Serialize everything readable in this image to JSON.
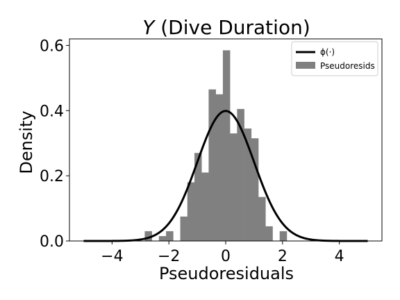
{
  "chart_data": {
    "type": "bar",
    "title_var": "Y",
    "title_rest": " (Dive Duration)",
    "xlabel": "Pseudoresiduals",
    "ylabel": "Density",
    "xlim": [
      -5.5,
      5.5
    ],
    "ylim": [
      0,
      0.62
    ],
    "xticks": [
      -4,
      -2,
      0,
      2,
      4
    ],
    "xtick_labels": [
      "−4",
      "−2",
      "0",
      "2",
      "4"
    ],
    "yticks": [
      0.0,
      0.2,
      0.4,
      0.6
    ],
    "ytick_labels": [
      "0.0",
      "0.2",
      "0.4",
      "0.6"
    ],
    "grid": false,
    "legend_position": "upper right",
    "legend": [
      {
        "label": "ϕ(·)",
        "kind": "line"
      },
      {
        "label": "Pseudoresids",
        "kind": "patch"
      }
    ],
    "series": [
      {
        "name": "Pseudoresids",
        "kind": "histogram",
        "color": "#808080",
        "bins": [
          {
            "x0": -2.85,
            "x1": -2.6,
            "density": 0.03
          },
          {
            "x0": -2.6,
            "x1": -2.35,
            "density": 0.0
          },
          {
            "x0": -2.35,
            "x1": -2.1,
            "density": 0.015
          },
          {
            "x0": -2.1,
            "x1": -1.85,
            "density": 0.03
          },
          {
            "x0": -1.85,
            "x1": -1.6,
            "density": 0.0
          },
          {
            "x0": -1.6,
            "x1": -1.35,
            "density": 0.075
          },
          {
            "x0": -1.35,
            "x1": -1.1,
            "density": 0.18
          },
          {
            "x0": -1.1,
            "x1": -0.85,
            "density": 0.27
          },
          {
            "x0": -0.85,
            "x1": -0.6,
            "density": 0.21
          },
          {
            "x0": -0.6,
            "x1": -0.35,
            "density": 0.465
          },
          {
            "x0": -0.35,
            "x1": -0.1,
            "density": 0.45
          },
          {
            "x0": -0.1,
            "x1": 0.15,
            "density": 0.585
          },
          {
            "x0": 0.15,
            "x1": 0.4,
            "density": 0.33
          },
          {
            "x0": 0.4,
            "x1": 0.65,
            "density": 0.405
          },
          {
            "x0": 0.65,
            "x1": 0.9,
            "density": 0.345
          },
          {
            "x0": 0.9,
            "x1": 1.15,
            "density": 0.315
          },
          {
            "x0": 1.15,
            "x1": 1.4,
            "density": 0.135
          },
          {
            "x0": 1.4,
            "x1": 1.65,
            "density": 0.045
          },
          {
            "x0": 1.65,
            "x1": 1.9,
            "density": 0.0
          },
          {
            "x0": 1.9,
            "x1": 2.15,
            "density": 0.03
          }
        ]
      },
      {
        "name": "ϕ(·)",
        "kind": "standard-normal-pdf",
        "color": "#000000",
        "x_range": [
          -5,
          5
        ]
      }
    ]
  }
}
